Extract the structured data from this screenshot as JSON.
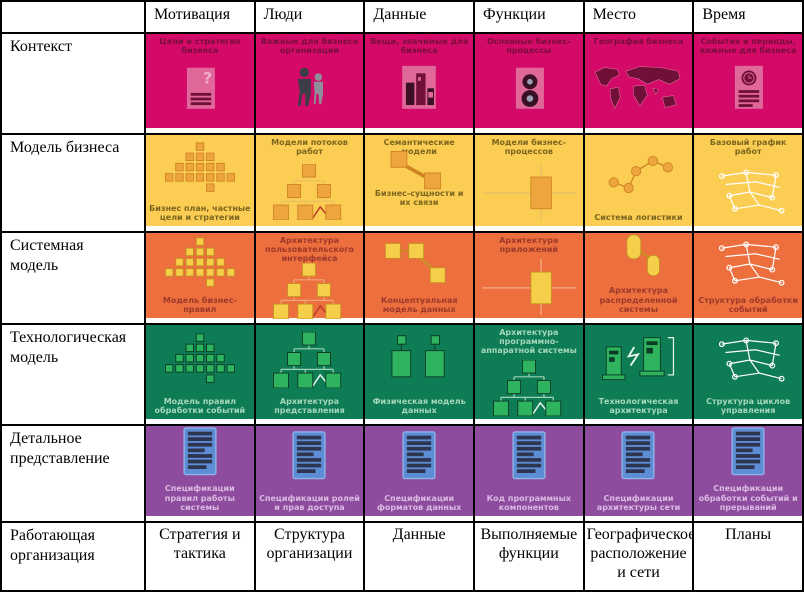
{
  "columns": [
    "Мотивация",
    "Люди",
    "Данные",
    "Функции",
    "Место",
    "Время"
  ],
  "matrix_rows": [
    {
      "label": "Контекст",
      "bg": "#d40a68",
      "caption_color": "#7a0d3d",
      "palette": {
        "light": "#e0679a",
        "dark": "#701038",
        "ink": "#3a1024",
        "figure": "#3d3d48",
        "figure2": "#8f8f99"
      },
      "cells": [
        {
          "caption": "Цели и стратегия бизнеса",
          "icon": "doc-question",
          "pos": "top"
        },
        {
          "caption": "Важные для бизнеса организации",
          "icon": "people",
          "pos": "top"
        },
        {
          "caption": "Вещи, значимые для бизнеса",
          "icon": "buildings",
          "pos": "top"
        },
        {
          "caption": "Основные бизнес-процессы",
          "icon": "doc-gears",
          "pos": "top"
        },
        {
          "caption": "География бизнеса",
          "icon": "world-map",
          "pos": "top"
        },
        {
          "caption": "События и периоды, важные для бизнеса",
          "icon": "doc-clock",
          "pos": "top"
        }
      ]
    },
    {
      "label": "Модель бизнеса",
      "bg": "#fbcd52",
      "caption_color": "#7c661f",
      "palette": {
        "box": "#efa53e",
        "stroke": "#cf8526",
        "line": "#e9c063",
        "accent": "#c0392b"
      },
      "cells": [
        {
          "caption": "Бизнес план, частные цели и стратегии",
          "icon": "pyramid",
          "pos": "bottom"
        },
        {
          "caption": "Модели потоков работ",
          "icon": "org-chart",
          "pos": "top"
        },
        {
          "caption": "Семантические модели",
          "caption2": "Бизнес-сущности и их связи",
          "icon": "entity-link",
          "pos": "top"
        },
        {
          "caption": "Модели бизнес-процессов",
          "icon": "process-cross",
          "pos": "top"
        },
        {
          "caption": "Система логистики",
          "icon": "network-nodes",
          "pos": "bottom"
        },
        {
          "caption": "Базовый график работ",
          "icon": "sketch",
          "pos": "top"
        }
      ]
    },
    {
      "label": "Системная модель",
      "bg": "#ed6f3e",
      "caption_color": "#9e392a",
      "palette": {
        "box": "#f6cf4a",
        "stroke": "#c98f24",
        "line": "#f2a57c",
        "accent": "#c0392b"
      },
      "cells": [
        {
          "caption": "Модель бизнес-правил",
          "icon": "pyramid",
          "pos": "bottom"
        },
        {
          "caption": "Архитектура пользовательского интерфейса",
          "icon": "org-chart",
          "pos": "top"
        },
        {
          "caption": "Концептуальная модель данных",
          "icon": "entity-chain",
          "pos": "bottom"
        },
        {
          "caption": "Архитектура приложений",
          "icon": "process-cross",
          "pos": "top"
        },
        {
          "caption": "Архитектура распределенной системы",
          "icon": "capsules",
          "pos": "bottom"
        },
        {
          "caption": "Структура обработки событий",
          "icon": "sketch",
          "pos": "bottom"
        }
      ]
    },
    {
      "label": "Технологическая модель",
      "bg": "#0e7c55",
      "caption_color": "#a5d8bb",
      "palette": {
        "box": "#2eb45f",
        "stroke": "#0a3c26",
        "line": "#9fd3b5",
        "accent": "#e8f6ee"
      },
      "cells": [
        {
          "caption": "Модель правил обработки событий",
          "icon": "pyramid",
          "pos": "bottom"
        },
        {
          "caption": "Архитектура представления",
          "icon": "org-chart",
          "pos": "bottom"
        },
        {
          "caption": "Физическая модель данных",
          "icon": "physical-data",
          "pos": "bottom"
        },
        {
          "caption": "Архитектура программно-аппаратной системы",
          "icon": "org-chart",
          "pos": "top"
        },
        {
          "caption": "Технологическая архитектура",
          "icon": "tech-towers",
          "pos": "bottom"
        },
        {
          "caption": "Структура циклов управления",
          "icon": "sketch",
          "pos": "bottom"
        }
      ]
    },
    {
      "label": "Детальное представление",
      "bg": "#8e4c9e",
      "caption_color": "#dabae2",
      "palette": {
        "doc": "#5d8ed5",
        "docStroke": "#8fb2e8",
        "stripe": "#2e3550"
      },
      "cells": [
        {
          "caption": "Спецификации правил работы системы",
          "icon": "spec-doc",
          "pos": "bottom"
        },
        {
          "caption": "Спецификации ролей и прав доступа",
          "icon": "spec-doc",
          "pos": "bottom"
        },
        {
          "caption": "Спецификации форматов данных",
          "icon": "spec-doc",
          "pos": "bottom"
        },
        {
          "caption": "Код программных компонентов",
          "icon": "spec-doc",
          "pos": "bottom"
        },
        {
          "caption": "Спецификации архитектуры сети",
          "icon": "spec-doc",
          "pos": "bottom"
        },
        {
          "caption": "Спецификации обработки событий и прерываний",
          "icon": "spec-doc",
          "pos": "bottom"
        }
      ]
    }
  ],
  "footer": {
    "label": "Работающая организация",
    "cells": [
      "Стратегия и тактика",
      "Структура организации",
      "Данные",
      "Выполняемые функции",
      "Географическое расположение и сети",
      "Планы"
    ]
  }
}
